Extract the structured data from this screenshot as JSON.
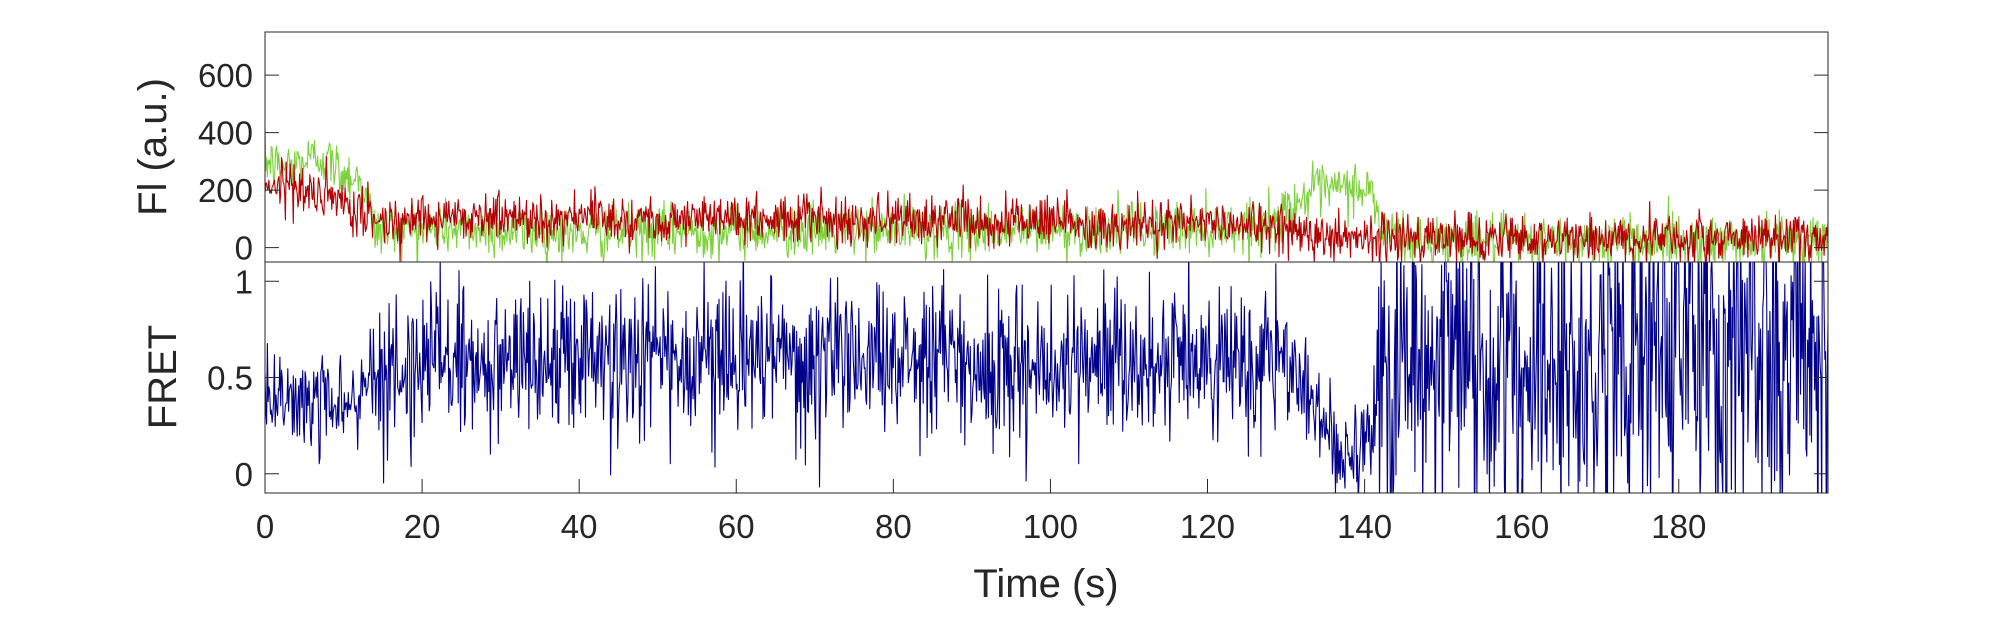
{
  "chart_data": [
    {
      "type": "line",
      "panel": "top",
      "title": "",
      "xlabel": "",
      "ylabel": "Fl (a.u.)",
      "xlim": [
        0,
        199
      ],
      "ylim": [
        -50,
        750
      ],
      "yticks": [
        0,
        200,
        400,
        600
      ],
      "ytick_labels": [
        "0",
        "200",
        "400",
        "600"
      ],
      "grid": false,
      "sample_interval_s": 0.1,
      "series": [
        {
          "color": "#7ed13c",
          "mean_profile": [
            [
              0,
              300
            ],
            [
              2,
              280
            ],
            [
              5,
              300
            ],
            [
              7,
              320
            ],
            [
              10,
              260
            ],
            [
              12,
              240
            ],
            [
              13,
              180
            ],
            [
              14,
              60
            ],
            [
              20,
              70
            ],
            [
              40,
              50
            ],
            [
              60,
              60
            ],
            [
              80,
              60
            ],
            [
              100,
              60
            ],
            [
              120,
              70
            ],
            [
              128,
              80
            ],
            [
              131,
              150
            ],
            [
              133,
              190
            ],
            [
              139,
              210
            ],
            [
              141,
              190
            ],
            [
              142,
              60
            ],
            [
              146,
              20
            ],
            [
              160,
              20
            ],
            [
              180,
              25
            ],
            [
              199,
              30
            ]
          ],
          "noise_sd": 45
        },
        {
          "color": "#b40000",
          "mean_profile": [
            [
              0,
              220
            ],
            [
              2,
              230
            ],
            [
              5,
              200
            ],
            [
              8,
              170
            ],
            [
              10,
              140
            ],
            [
              13,
              110
            ],
            [
              15,
              90
            ],
            [
              20,
              110
            ],
            [
              40,
              105
            ],
            [
              60,
              100
            ],
            [
              80,
              100
            ],
            [
              100,
              90
            ],
            [
              120,
              85
            ],
            [
              130,
              75
            ],
            [
              134,
              50
            ],
            [
              138,
              35
            ],
            [
              141,
              45
            ],
            [
              144,
              35
            ],
            [
              160,
              30
            ],
            [
              180,
              35
            ],
            [
              199,
              40
            ]
          ],
          "noise_sd": 42
        }
      ]
    },
    {
      "type": "line",
      "panel": "bottom",
      "title": "",
      "xlabel": "Time (s)",
      "ylabel": "FRET",
      "xlim": [
        0,
        199
      ],
      "ylim": [
        -0.1,
        1.1
      ],
      "xticks": [
        0,
        20,
        40,
        60,
        80,
        100,
        120,
        140,
        160,
        180
      ],
      "xtick_labels": [
        "0",
        "20",
        "40",
        "60",
        "80",
        "100",
        "120",
        "140",
        "160",
        "180"
      ],
      "yticks": [
        0,
        0.5,
        1
      ],
      "ytick_labels": [
        "0",
        "0.5",
        "1"
      ],
      "grid": false,
      "sample_interval_s": 0.1,
      "series": [
        {
          "color": "#00008b",
          "mean_profile": [
            [
              0,
              0.4
            ],
            [
              8,
              0.35
            ],
            [
              12,
              0.35
            ],
            [
              14,
              0.5
            ],
            [
              20,
              0.6
            ],
            [
              40,
              0.6
            ],
            [
              60,
              0.6
            ],
            [
              80,
              0.6
            ],
            [
              100,
              0.55
            ],
            [
              120,
              0.55
            ],
            [
              130,
              0.6
            ],
            [
              133,
              0.4
            ],
            [
              136,
              0.15
            ],
            [
              139,
              0.1
            ],
            [
              141,
              0.3
            ],
            [
              143,
              0.6
            ],
            [
              160,
              0.6
            ],
            [
              180,
              0.6
            ],
            [
              199,
              0.6
            ]
          ],
          "noise_sd_profile": [
            [
              0,
              0.12
            ],
            [
              13,
              0.12
            ],
            [
              14,
              0.2
            ],
            [
              130,
              0.2
            ],
            [
              131,
              0.12
            ],
            [
              141,
              0.15
            ],
            [
              142,
              0.45
            ],
            [
              199,
              0.45
            ]
          ]
        }
      ]
    }
  ]
}
